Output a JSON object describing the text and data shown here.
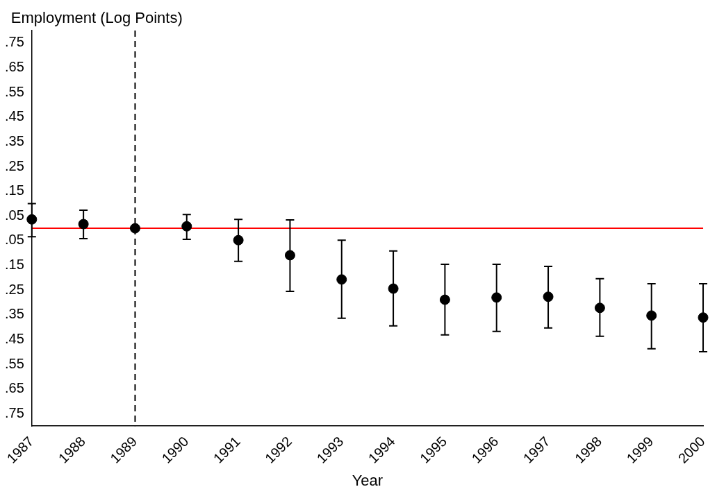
{
  "chart_data": {
    "type": "scatter",
    "ylabel": "Employment (Log Points)",
    "xlabel": "Year",
    "categories": [
      "1987",
      "1988",
      "1989",
      "1990",
      "1991",
      "1992",
      "1993",
      "1994",
      "1995",
      "1996",
      "1997",
      "1998",
      "1999",
      "2000"
    ],
    "series": [
      {
        "color": "#000000",
        "values": [
          0.036,
          0.017,
          0,
          0.008,
          -0.048,
          -0.109,
          -0.207,
          -0.244,
          -0.289,
          -0.28,
          -0.277,
          -0.322,
          -0.353,
          -0.361
        ],
        "errors": [
          [
            -0.034,
            0.1
          ],
          [
            -0.042,
            0.073
          ],
          null,
          [
            -0.045,
            0.056
          ],
          [
            -0.134,
            0.036
          ],
          [
            -0.255,
            0.034
          ],
          [
            -0.364,
            -0.048
          ],
          [
            -0.395,
            -0.092
          ],
          [
            -0.431,
            -0.146
          ],
          [
            -0.417,
            -0.146
          ],
          [
            -0.403,
            -0.154
          ],
          [
            -0.437,
            -0.204
          ],
          [
            -0.487,
            -0.224
          ],
          [
            -0.499,
            -0.224
          ]
        ]
      }
    ],
    "ylim": [
      -0.8,
      0.8
    ],
    "yticks": [
      {
        "value": 0.75,
        "label": ".75"
      },
      {
        "value": 0.65,
        "label": ".65"
      },
      {
        "value": 0.55,
        "label": ".55"
      },
      {
        "value": 0.45,
        "label": ".45"
      },
      {
        "value": 0.35,
        "label": ".35"
      },
      {
        "value": 0.25,
        "label": ".25"
      },
      {
        "value": 0.15,
        "label": ".15"
      },
      {
        "value": 0.05,
        "label": ".05"
      },
      {
        "value": -0.05,
        "label": ".05"
      },
      {
        "value": -0.15,
        "label": ".15"
      },
      {
        "value": -0.25,
        "label": ".25"
      },
      {
        "value": -0.35,
        "label": ".35"
      },
      {
        "value": -0.45,
        "label": ".45"
      },
      {
        "value": -0.55,
        "label": ".55"
      },
      {
        "value": -0.65,
        "label": ".65"
      },
      {
        "value": -0.75,
        "label": ".75"
      }
    ],
    "ref_lines": [
      {
        "axis": "y",
        "value": 0,
        "color": "#ff0000",
        "line_style": "solid"
      },
      {
        "axis": "x",
        "value": "1989",
        "color": "#000000",
        "line_style": "dashed"
      }
    ],
    "grid": false,
    "legend": false,
    "marker": "circle"
  }
}
